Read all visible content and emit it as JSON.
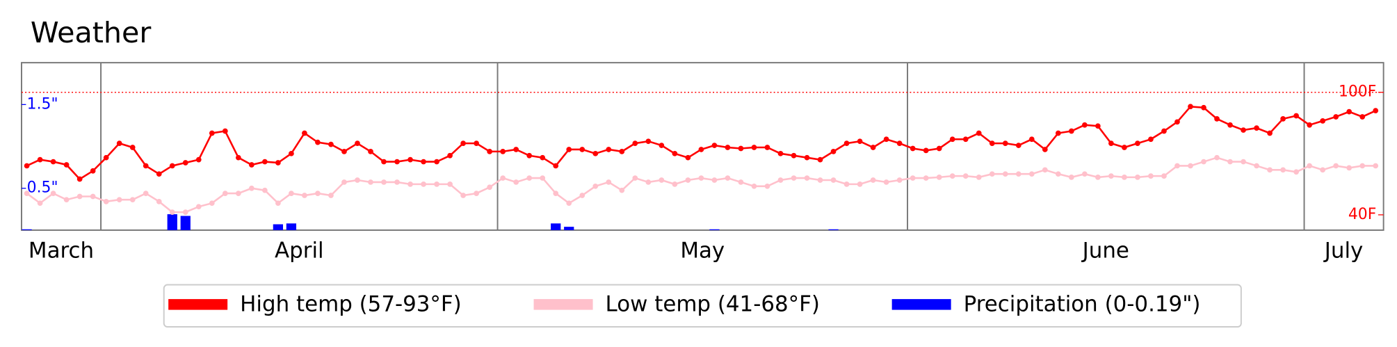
{
  "chart_data": {
    "type": "line",
    "title": "Weather",
    "months": [
      "March",
      "April",
      "May",
      "June",
      "July"
    ],
    "series": [
      {
        "name": "High temp (57-93°F)",
        "color": "#ff0000",
        "type": "line",
        "values": [
          64,
          67,
          66,
          64.5,
          57.5,
          61.5,
          68,
          75,
          73,
          64,
          60,
          64,
          65.5,
          67,
          80,
          81,
          68,
          64.5,
          66,
          65.5,
          70,
          80,
          75.5,
          74.5,
          71,
          75,
          71,
          66,
          66,
          67,
          66,
          66,
          69,
          75,
          75,
          71,
          71,
          72,
          69,
          68,
          64,
          72,
          72,
          70,
          72,
          71,
          75,
          76,
          74,
          70,
          68,
          72,
          74,
          73,
          72.5,
          73,
          73,
          70,
          69,
          68,
          67,
          71,
          75,
          76,
          73,
          77,
          75,
          72.5,
          71.5,
          72.5,
          77,
          77,
          80,
          75,
          75,
          74,
          77,
          72,
          80,
          81,
          84,
          83.5,
          75,
          73,
          75,
          77,
          81,
          85.5,
          93,
          92.5,
          87,
          84,
          81.5,
          82.5,
          80,
          87,
          88.5,
          84,
          86,
          88,
          90.5,
          88,
          91
        ]
      },
      {
        "name": "Low temp (41-68°F)",
        "color": "#ffc0cb",
        "type": "line",
        "values": [
          50.5,
          45.7,
          50.5,
          47.4,
          49,
          49,
          46.5,
          47.4,
          47.4,
          50.5,
          46.5,
          41.3,
          41.3,
          44,
          45.7,
          50.5,
          50.5,
          53,
          52,
          45.7,
          50.5,
          49.5,
          50.5,
          49.5,
          56,
          57,
          56,
          56,
          56,
          55,
          55,
          55,
          55,
          49.5,
          50.5,
          53.5,
          58,
          56,
          58,
          58,
          50.5,
          45.7,
          49.5,
          54,
          56,
          52,
          58,
          56,
          57,
          55,
          57,
          58,
          57,
          58,
          56,
          54,
          54,
          57,
          58,
          58,
          57,
          57,
          55,
          55,
          57,
          56,
          57,
          58,
          58,
          58.4,
          59,
          59,
          58.4,
          60,
          60,
          60,
          60,
          62,
          60,
          58.4,
          60,
          58.4,
          59,
          58.4,
          58.4,
          59,
          59,
          64,
          64,
          66,
          68,
          66,
          66,
          64,
          62,
          62,
          61,
          64,
          62,
          64,
          63,
          64,
          64
        ]
      },
      {
        "name": "Precipitation (0-0.19\")",
        "color": "#0000ff",
        "type": "bar",
        "axis": "y2",
        "values": [
          0.01,
          0,
          0,
          0,
          0,
          0,
          0,
          0,
          0,
          0,
          0,
          0.19,
          0.17,
          0,
          0,
          0,
          0,
          0,
          0,
          0.07,
          0.08,
          0,
          0,
          0,
          0,
          0,
          0,
          0,
          0,
          0,
          0,
          0,
          0,
          0,
          0,
          0,
          0,
          0,
          0,
          0,
          0.08,
          0.04,
          0,
          0,
          0,
          0,
          0,
          0,
          0,
          0,
          0,
          0,
          0.01,
          0,
          0,
          0,
          0,
          0,
          0,
          0,
          0,
          0.01,
          0,
          0,
          0,
          0,
          0,
          0,
          0,
          0,
          0,
          0,
          0,
          0,
          0,
          0,
          0,
          0,
          0,
          0,
          0,
          0,
          0,
          0,
          0,
          0,
          0,
          0,
          0,
          0,
          0,
          0,
          0,
          0,
          0,
          0,
          0,
          0,
          0,
          0,
          0,
          0,
          0
        ]
      }
    ],
    "ylim": [
      32.5,
      114.5
    ],
    "yticks": [
      {
        "value": 40,
        "label": "40F"
      },
      {
        "value": 100,
        "label": "100F"
      }
    ],
    "y2lim": [
      0,
      2
    ],
    "y2ticks": [
      {
        "value": 0.5,
        "label": "0.5\""
      },
      {
        "value": 1.5,
        "label": "1.5\""
      }
    ],
    "legend": "bottom"
  }
}
